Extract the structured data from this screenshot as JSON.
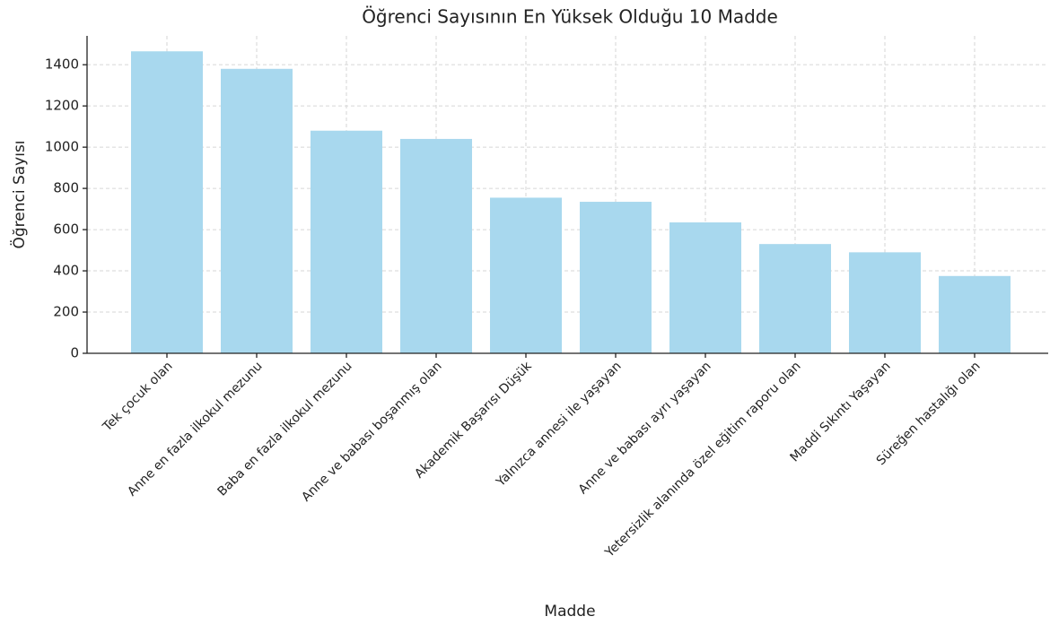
{
  "chart_data": {
    "type": "bar",
    "title": "Öğrenci Sayısının En Yüksek Olduğu 10 Madde",
    "x_label": "Madde",
    "y_label": "Öğrenci Sayısı",
    "categories": [
      "Tek çocuk olan",
      "Anne en fazla ilkokul mezunu",
      "Baba en fazla ilkokul mezunu",
      "Anne ve babası boşanmış olan",
      "Akademik Başarısı Düşük",
      "Yalnızca annesi ile yaşayan",
      "Anne ve babası ayrı yaşayan",
      "Yetersizlik alanında özel eğitim raporu olan",
      "Maddi Sıkıntı Yaşayan",
      "Süreğen hastalığı olan"
    ],
    "values": [
      1465,
      1380,
      1080,
      1040,
      755,
      735,
      635,
      530,
      490,
      375
    ],
    "color": "#a8d8ee",
    "ylim": [
      0,
      1540
    ],
    "yticks": [
      0,
      200,
      400,
      600,
      800,
      1000,
      1200,
      1400
    ],
    "grid": true
  }
}
